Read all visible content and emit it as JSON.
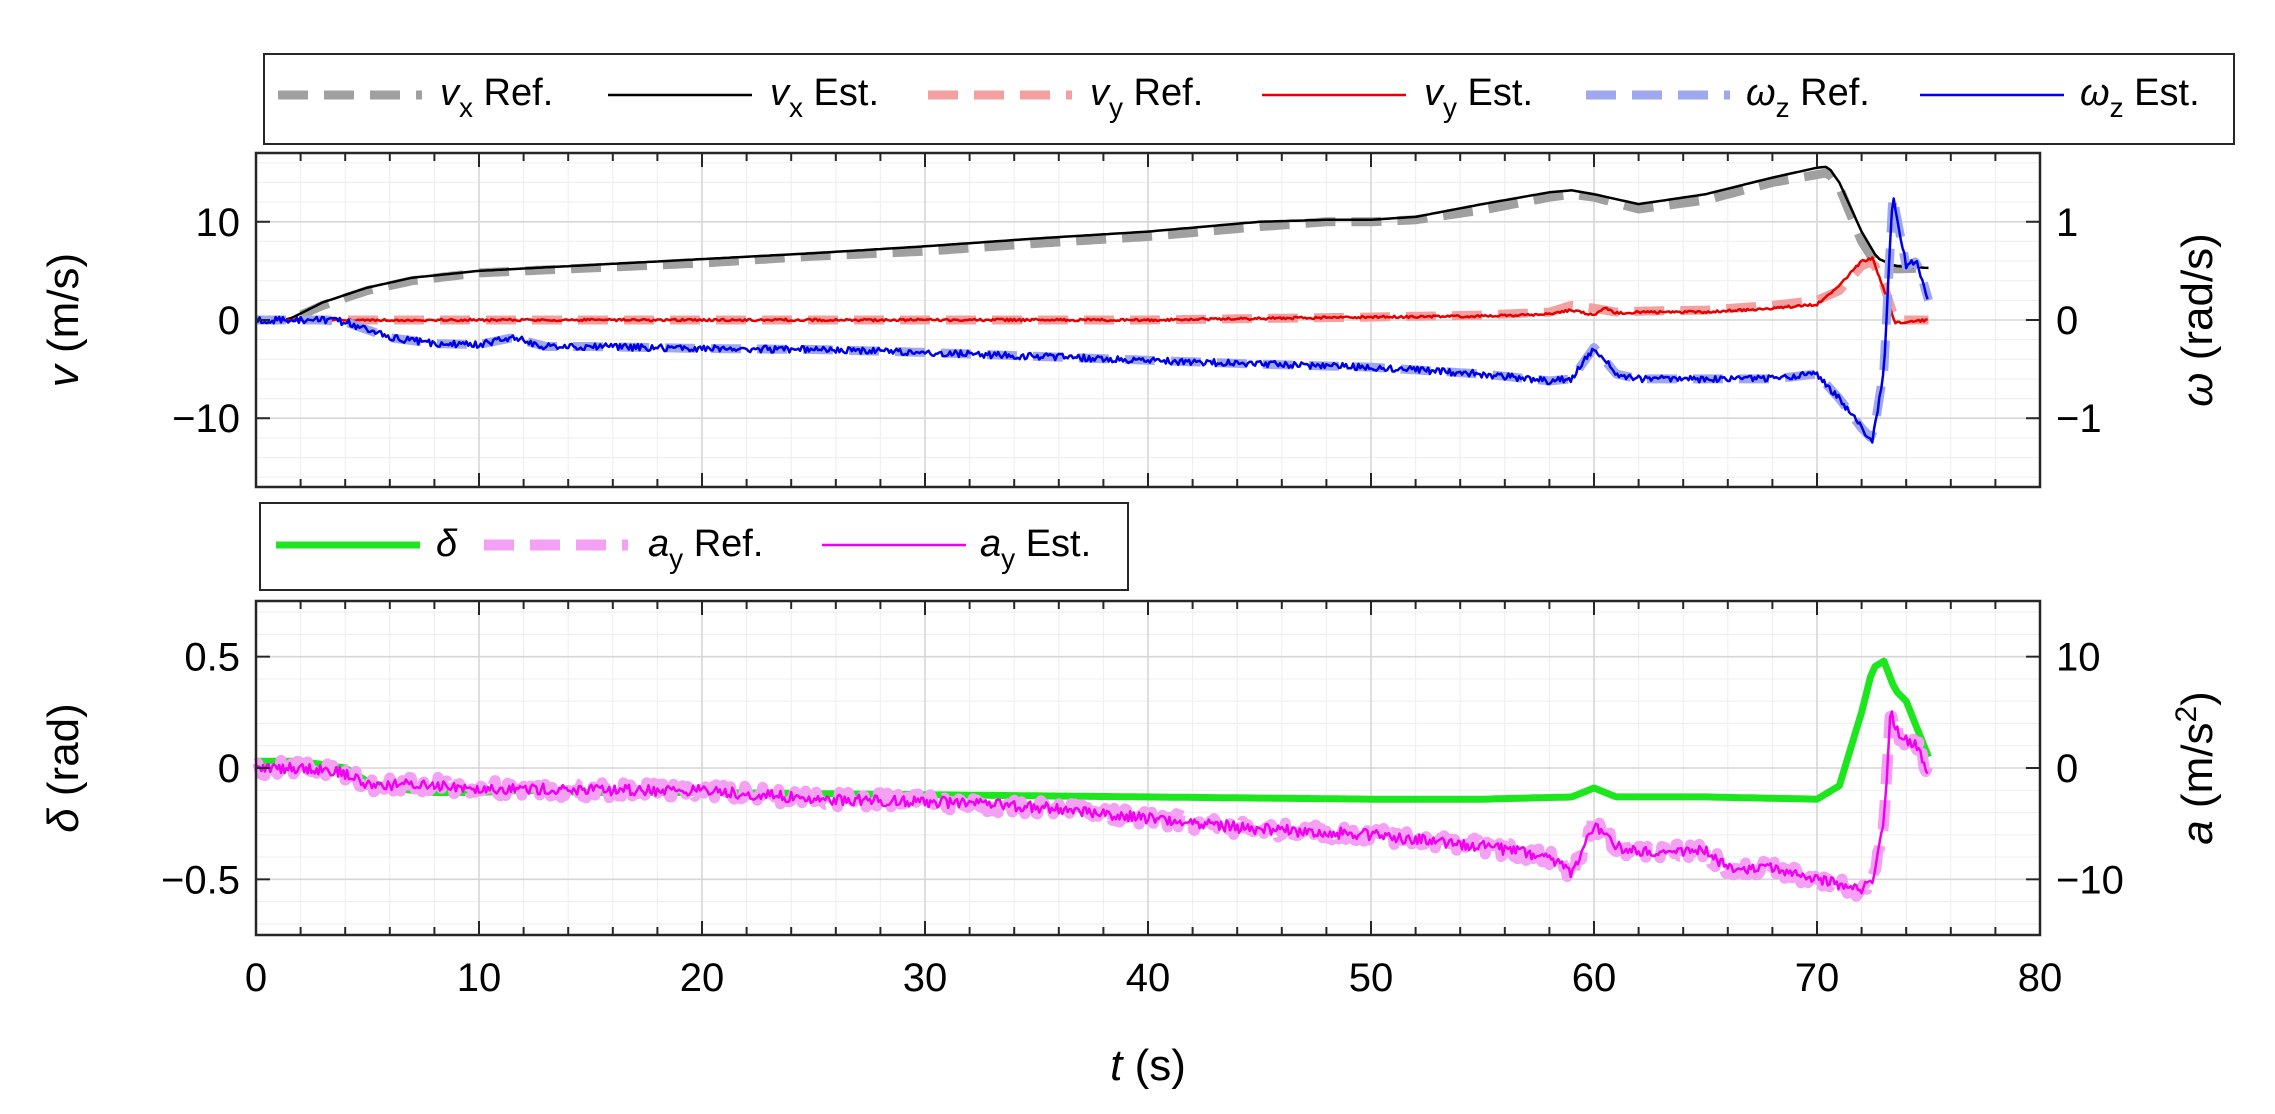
{
  "chart_data": [
    {
      "type": "line",
      "panel": "top",
      "xlim": [
        0,
        80
      ],
      "ylim_left": [
        -17,
        17
      ],
      "ylim_right": [
        -1.7,
        1.7
      ],
      "grid": true,
      "ylabel_left": {
        "sym": "v",
        "rest": " (m/s)"
      },
      "ylabel_right": {
        "sym": "ω",
        "rest": " (rad/s)"
      },
      "yticks_left": [
        {
          "v": 10,
          "label": "10"
        },
        {
          "v": 0,
          "label": "0"
        },
        {
          "v": -10,
          "label": "−10"
        }
      ],
      "yticks_right": [
        {
          "v": 1,
          "label": "1"
        },
        {
          "v": 0,
          "label": "0"
        },
        {
          "v": -1,
          "label": "−1"
        }
      ],
      "legend": [
        {
          "sym": "v",
          "sub": "x",
          "text": " Ref."
        },
        {
          "sym": "v",
          "sub": "x",
          "text": " Est."
        },
        {
          "sym": "v",
          "sub": "y",
          "text": " Ref."
        },
        {
          "sym": "v",
          "sub": "y",
          "text": " Est."
        },
        {
          "sym": "ω",
          "sub": "z",
          "text": " Ref."
        },
        {
          "sym": "ω",
          "sub": "z",
          "text": " Est."
        }
      ],
      "series": [
        {
          "name": "vx Ref.",
          "axis": "left",
          "style": "dashed",
          "color": "#a0a0a0",
          "width": 9,
          "noise": 0,
          "x": [
            0,
            1.5,
            3,
            5,
            7,
            10,
            15,
            20,
            25,
            30,
            35,
            40,
            45,
            48,
            50,
            52,
            55,
            58,
            59,
            60,
            62,
            65,
            68,
            70,
            70.5,
            71,
            72,
            72.7,
            73.5,
            75
          ],
          "y": [
            0,
            0,
            1.5,
            3,
            4,
            4.8,
            5.3,
            5.8,
            6.5,
            7,
            7.8,
            8.5,
            9.5,
            10,
            10,
            10.2,
            11.2,
            12.5,
            12.8,
            12.5,
            11.3,
            12.2,
            14,
            14.8,
            15,
            13.5,
            8,
            5.5,
            5.2,
            5.3
          ]
        },
        {
          "name": "vx Est.",
          "axis": "left",
          "style": "solid",
          "color": "#000000",
          "width": 2.5,
          "noise": 0,
          "x": [
            0,
            1.5,
            3,
            5,
            7,
            10,
            15,
            20,
            25,
            30,
            35,
            40,
            45,
            48,
            50,
            52,
            55,
            58,
            59,
            60,
            62,
            65,
            68,
            70,
            70.5,
            71,
            72,
            72.7,
            73.5,
            75
          ],
          "y": [
            0,
            0.1,
            1.8,
            3.3,
            4.3,
            5,
            5.6,
            6.2,
            6.8,
            7.5,
            8.3,
            9,
            10,
            10.2,
            10.2,
            10.5,
            11.8,
            13,
            13.2,
            12.8,
            11.8,
            12.8,
            14.5,
            15.5,
            15.6,
            14,
            9,
            6.3,
            5.5,
            5.3
          ]
        },
        {
          "name": "vy Ref.",
          "axis": "left",
          "style": "dashed",
          "color": "#f2a0a0",
          "width": 9,
          "noise": 0,
          "x": [
            0,
            10,
            20,
            30,
            40,
            50,
            55,
            58,
            59,
            60,
            61,
            62,
            65,
            68,
            70,
            71,
            72,
            72.5,
            73,
            73.5,
            75
          ],
          "y": [
            0,
            0,
            0,
            0,
            0,
            0.3,
            0.5,
            0.8,
            1.5,
            1.2,
            0.8,
            0.9,
            1,
            1.5,
            2,
            3,
            5.5,
            6,
            3.5,
            0,
            0
          ]
        },
        {
          "name": "vy Est.",
          "axis": "left",
          "style": "solid",
          "color": "#e60000",
          "width": 2.5,
          "noise": 0.12,
          "x": [
            0,
            10,
            20,
            30,
            40,
            50,
            55,
            58,
            59,
            60,
            60.5,
            61,
            62,
            65,
            68,
            70,
            71,
            72,
            72.5,
            73,
            73.5,
            75
          ],
          "y": [
            0,
            0,
            0,
            0,
            0,
            0.3,
            0.4,
            0.6,
            1,
            0.5,
            1.2,
            0.7,
            0.8,
            0.8,
            1.2,
            1.6,
            3.5,
            6,
            6.3,
            3,
            -0.3,
            0
          ]
        },
        {
          "name": "ωz Ref.",
          "axis": "right",
          "style": "dashed",
          "color": "#9fa8ee",
          "width": 9,
          "noise": 0,
          "x": [
            0,
            3,
            4,
            5,
            6,
            8,
            10,
            11.5,
            12,
            13,
            15,
            20,
            25,
            30,
            35,
            40,
            45,
            50,
            55,
            58,
            59,
            60,
            61,
            62,
            65,
            68,
            70,
            71,
            72,
            72.5,
            73,
            73.4,
            74,
            74.5,
            75
          ],
          "y": [
            0,
            0,
            -0.02,
            -0.1,
            -0.18,
            -0.24,
            -0.25,
            -0.18,
            -0.21,
            -0.27,
            -0.27,
            -0.29,
            -0.3,
            -0.33,
            -0.37,
            -0.41,
            -0.45,
            -0.48,
            -0.55,
            -0.62,
            -0.6,
            -0.28,
            -0.55,
            -0.6,
            -0.6,
            -0.6,
            -0.55,
            -0.8,
            -1.1,
            -1.22,
            -0.5,
            1.25,
            0.55,
            0.6,
            0.2
          ]
        },
        {
          "name": "ωz Est.",
          "axis": "right",
          "style": "solid",
          "color": "#0000e6",
          "width": 2.5,
          "noise": 0.035,
          "x": [
            0,
            3,
            4,
            5,
            6,
            8,
            10,
            11.5,
            12,
            13,
            15,
            20,
            25,
            30,
            35,
            40,
            45,
            50,
            55,
            58,
            59,
            60,
            61,
            62,
            65,
            68,
            70,
            71,
            72,
            72.5,
            73,
            73.4,
            74,
            74.5,
            75
          ],
          "y": [
            0,
            0,
            -0.02,
            -0.1,
            -0.18,
            -0.24,
            -0.25,
            -0.18,
            -0.21,
            -0.27,
            -0.27,
            -0.29,
            -0.3,
            -0.33,
            -0.37,
            -0.41,
            -0.45,
            -0.48,
            -0.55,
            -0.62,
            -0.6,
            -0.28,
            -0.55,
            -0.6,
            -0.6,
            -0.6,
            -0.55,
            -0.8,
            -1.1,
            -1.22,
            -0.5,
            1.3,
            0.55,
            0.6,
            0.15
          ]
        }
      ]
    },
    {
      "type": "line",
      "panel": "bottom",
      "xlim": [
        0,
        80
      ],
      "ylim_left": [
        -0.75,
        0.75
      ],
      "ylim_right": [
        -15,
        15
      ],
      "grid": true,
      "xlabel": {
        "sym": "t",
        "rest": " (s)"
      },
      "xticks": [
        {
          "v": 0,
          "label": "0"
        },
        {
          "v": 10,
          "label": "10"
        },
        {
          "v": 20,
          "label": "20"
        },
        {
          "v": 30,
          "label": "30"
        },
        {
          "v": 40,
          "label": "40"
        },
        {
          "v": 50,
          "label": "50"
        },
        {
          "v": 60,
          "label": "60"
        },
        {
          "v": 70,
          "label": "70"
        },
        {
          "v": 80,
          "label": "80"
        }
      ],
      "ylabel_left": {
        "sym": "δ",
        "rest": " (rad)"
      },
      "ylabel_right": {
        "sym": "a",
        "rest": " (m/s",
        "sup": "2",
        "tail": ")"
      },
      "yticks_left": [
        {
          "v": 0.5,
          "label": "0.5"
        },
        {
          "v": 0,
          "label": "0"
        },
        {
          "v": -0.5,
          "label": "−0.5"
        }
      ],
      "yticks_right": [
        {
          "v": 10,
          "label": "10"
        },
        {
          "v": 0,
          "label": "0"
        },
        {
          "v": -10,
          "label": "−10"
        }
      ],
      "legend": [
        {
          "sym": "δ",
          "sub": "",
          "text": ""
        },
        {
          "sym": "a",
          "sub": "y",
          "text": " Ref."
        },
        {
          "sym": "a",
          "sub": "y",
          "text": " Est."
        }
      ],
      "series": [
        {
          "name": "δ",
          "axis": "left",
          "style": "solid",
          "color": "#1ee61e",
          "width": 7,
          "noise": 0,
          "x": [
            0,
            2,
            4,
            5,
            6,
            8,
            10,
            12,
            15,
            20,
            30,
            40,
            50,
            55,
            59,
            60,
            61,
            65,
            70,
            71,
            72,
            72.5,
            73,
            73.5,
            74,
            75
          ],
          "y": [
            0.03,
            0.03,
            0,
            -0.06,
            -0.09,
            -0.11,
            -0.11,
            -0.1,
            -0.11,
            -0.11,
            -0.12,
            -0.13,
            -0.14,
            -0.14,
            -0.13,
            -0.09,
            -0.13,
            -0.13,
            -0.14,
            -0.08,
            0.25,
            0.45,
            0.48,
            0.35,
            0.3,
            0.05
          ]
        },
        {
          "name": "ay Ref.",
          "axis": "right",
          "style": "dashed",
          "color": "#f4a0f4",
          "width": 11,
          "noise": 0.7,
          "x": [
            0,
            2,
            3,
            4,
            5,
            8,
            10,
            15,
            20,
            25,
            30,
            35,
            40,
            45,
            50,
            55,
            58,
            59,
            60,
            61,
            62,
            65,
            66,
            68,
            70,
            72,
            72.5,
            73,
            73.3,
            73.7,
            74.5,
            75
          ],
          "y": [
            0,
            0,
            -0.1,
            -0.5,
            -1.5,
            -1.5,
            -1.8,
            -2,
            -2,
            -2.8,
            -3,
            -3.5,
            -4.5,
            -5.5,
            -6,
            -7,
            -8,
            -9.5,
            -5,
            -7,
            -7.5,
            -7.5,
            -9,
            -9,
            -10,
            -11,
            -10,
            -5,
            5,
            3,
            2,
            -0.5
          ]
        },
        {
          "name": "ay Est.",
          "axis": "right",
          "style": "solid",
          "color": "#f000f0",
          "width": 2.5,
          "noise": 0.5,
          "x": [
            0,
            2,
            3,
            4,
            5,
            8,
            10,
            15,
            20,
            25,
            30,
            35,
            40,
            45,
            50,
            55,
            58,
            59,
            60,
            61,
            62,
            65,
            66,
            68,
            70,
            72,
            72.5,
            73,
            73.3,
            73.7,
            74.5,
            75
          ],
          "y": [
            0,
            0,
            -0.1,
            -0.5,
            -1.5,
            -1.5,
            -1.8,
            -2,
            -2,
            -2.8,
            -3,
            -3.5,
            -4.5,
            -5.5,
            -6,
            -7,
            -8,
            -9.5,
            -5,
            -7,
            -7.5,
            -7.5,
            -9,
            -9,
            -10,
            -11,
            -10,
            -5,
            5,
            3,
            2,
            -0.5
          ]
        }
      ]
    }
  ]
}
